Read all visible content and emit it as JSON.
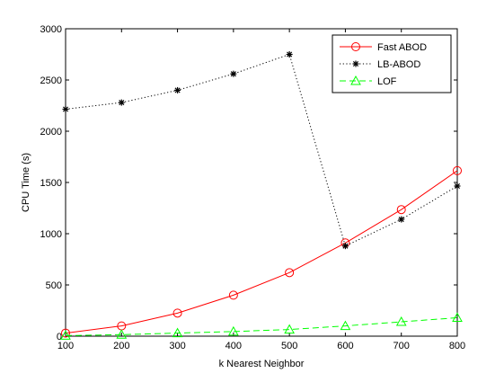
{
  "chart_data": {
    "type": "line",
    "xlabel": "k Nearest Neighbor",
    "ylabel": "CPU Time (s)",
    "xlim": [
      100,
      800
    ],
    "ylim": [
      0,
      3000
    ],
    "x_ticks": [
      "100",
      "200",
      "300",
      "400",
      "500",
      "600",
      "700",
      "800"
    ],
    "y_ticks": [
      "0",
      "500",
      "1000",
      "1500",
      "2000",
      "2500",
      "3000"
    ],
    "grid": false,
    "legend_position": "top-right",
    "x": [
      100,
      200,
      300,
      400,
      500,
      600,
      700,
      800
    ],
    "series": [
      {
        "name": "Fast ABOD",
        "values": [
          30,
          100,
          225,
          400,
          620,
          910,
          1235,
          1615
        ],
        "color": "#ff0000",
        "dash": "solid",
        "marker": "circle"
      },
      {
        "name": "LB-ABOD",
        "values": [
          2215,
          2280,
          2400,
          2560,
          2750,
          880,
          1140,
          1465
        ],
        "color": "#000000",
        "dash": "dotted",
        "marker": "star"
      },
      {
        "name": "LOF",
        "values": [
          5,
          15,
          30,
          45,
          65,
          100,
          140,
          180
        ],
        "color": "#00ff00",
        "dash": "dashed",
        "marker": "triangle"
      }
    ]
  }
}
